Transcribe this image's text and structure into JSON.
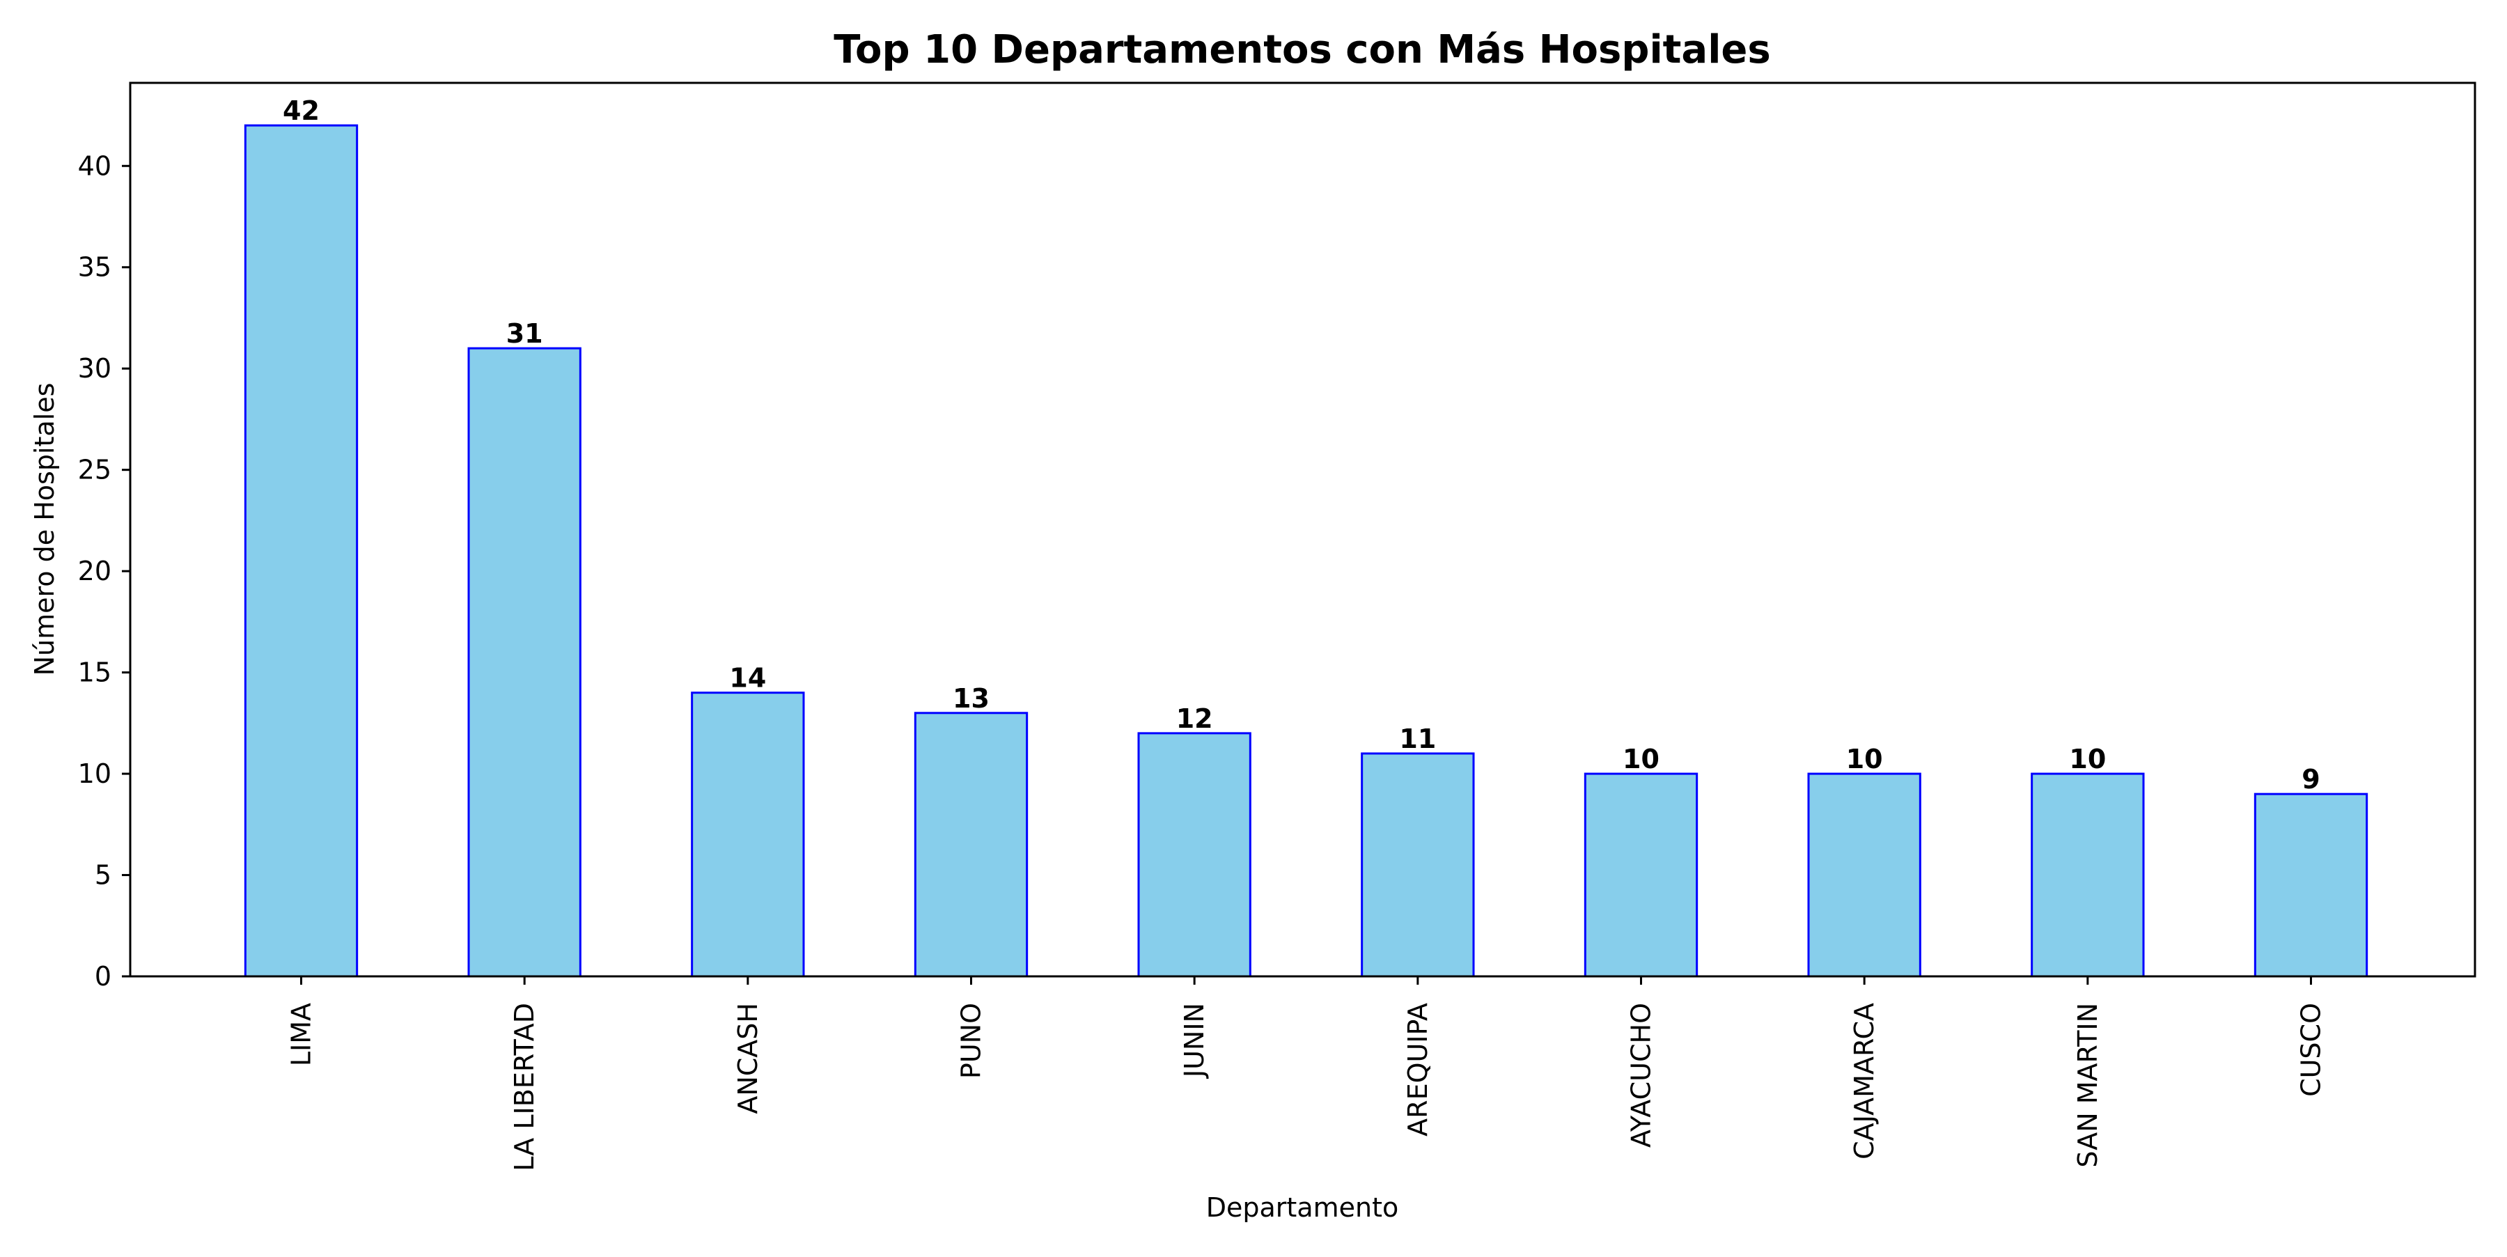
{
  "chart_data": {
    "type": "bar",
    "title": "Top 10 Departamentos con Más Hospitales",
    "xlabel": "Departamento",
    "ylabel": "Número de Hospitales",
    "categories": [
      "LIMA",
      "LA LIBERTAD",
      "ANCASH",
      "PUNO",
      "JUNIN",
      "AREQUIPA",
      "AYACUCHO",
      "CAJAMARCA",
      "SAN MARTIN",
      "CUSCO"
    ],
    "values": [
      42,
      31,
      14,
      13,
      12,
      11,
      10,
      10,
      10,
      9
    ],
    "data_labels": [
      "42",
      "31",
      "14",
      "13",
      "12",
      "11",
      "10",
      "10",
      "10",
      "9"
    ],
    "ylim": [
      0,
      44.1
    ],
    "yticks": [
      0,
      5,
      10,
      15,
      20,
      25,
      30,
      35,
      40
    ],
    "ytick_labels": [
      "0",
      "5",
      "10",
      "15",
      "20",
      "25",
      "30",
      "35",
      "40"
    ],
    "grid": false,
    "legend": "none",
    "colors": {
      "bar_fill": "#87ceeb",
      "bar_edge": "#0000ff",
      "axes": "#000000",
      "text": "#000000"
    }
  }
}
